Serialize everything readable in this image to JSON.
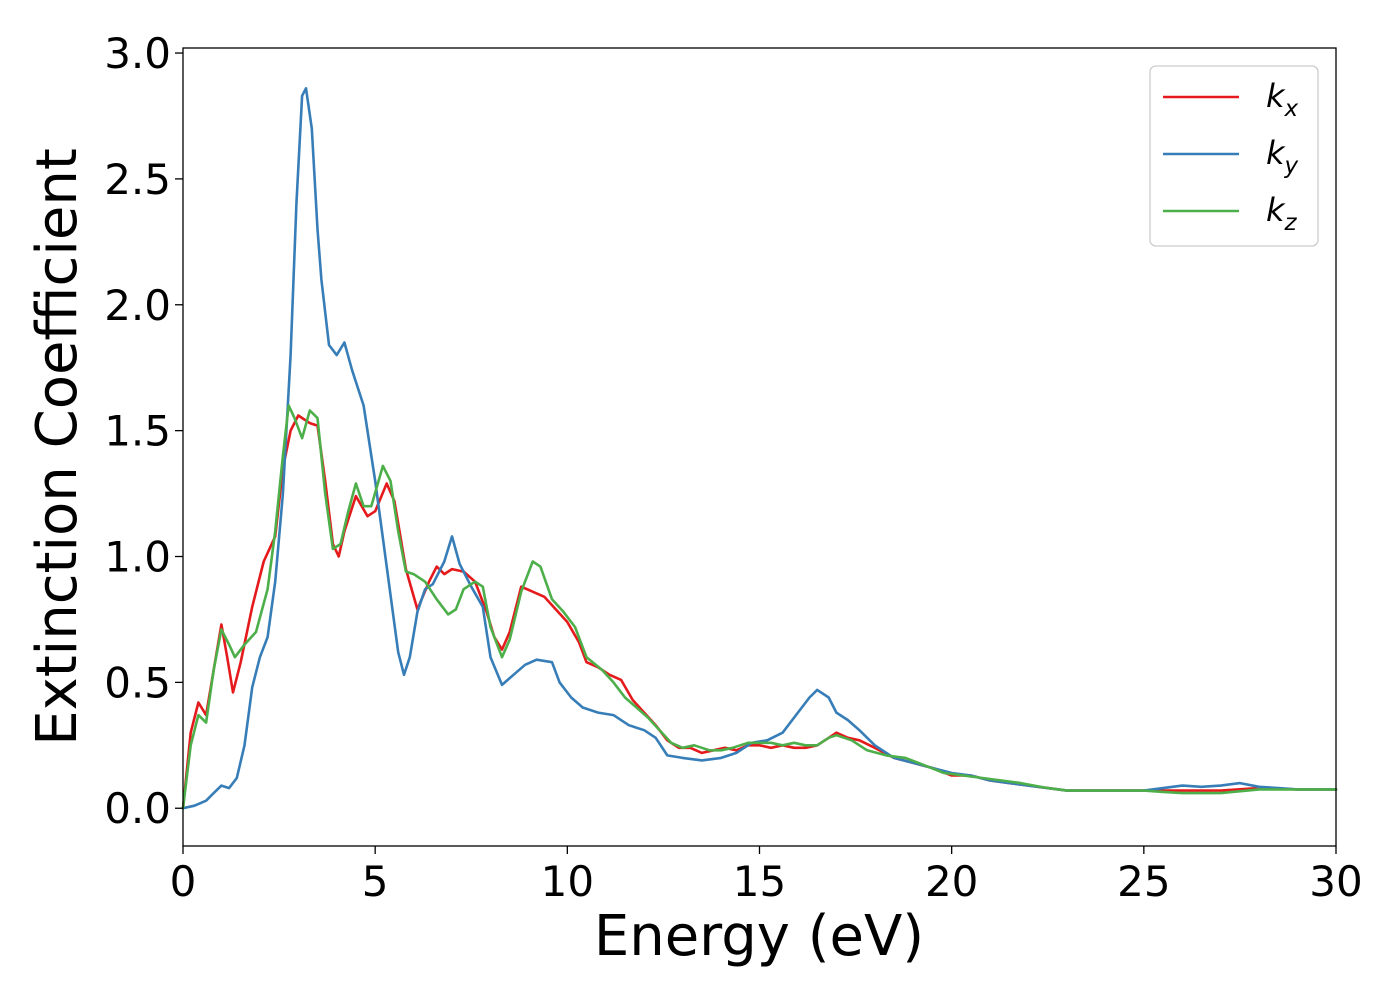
{
  "chart_data": {
    "type": "line",
    "title": "",
    "xlabel": "Energy (eV)",
    "ylabel": "Extinction Coefficient",
    "xlim": [
      0,
      30
    ],
    "ylim": [
      -0.15,
      3.02
    ],
    "xticks": [
      0,
      5,
      10,
      15,
      20,
      25,
      30
    ],
    "yticks": [
      0.0,
      0.5,
      1.0,
      1.5,
      2.0,
      2.5,
      3.0
    ],
    "xtick_labels": [
      "0",
      "5",
      "10",
      "15",
      "20",
      "25",
      "30"
    ],
    "ytick_labels": [
      "0.0",
      "0.5",
      "1.0",
      "1.5",
      "2.0",
      "2.5",
      "3.0"
    ],
    "grid": false,
    "legend_position": "top-right",
    "series": [
      {
        "name": "k",
        "subscript": "x",
        "color": "#e41a1c",
        "points": [
          [
            0,
            0
          ],
          [
            0.2,
            0.3
          ],
          [
            0.4,
            0.42
          ],
          [
            0.6,
            0.37
          ],
          [
            0.8,
            0.55
          ],
          [
            1.0,
            0.73
          ],
          [
            1.15,
            0.6
          ],
          [
            1.3,
            0.46
          ],
          [
            1.5,
            0.58
          ],
          [
            1.8,
            0.8
          ],
          [
            2.1,
            0.98
          ],
          [
            2.4,
            1.08
          ],
          [
            2.6,
            1.35
          ],
          [
            2.8,
            1.5
          ],
          [
            3.0,
            1.56
          ],
          [
            3.3,
            1.53
          ],
          [
            3.5,
            1.52
          ],
          [
            3.7,
            1.3
          ],
          [
            3.9,
            1.05
          ],
          [
            4.05,
            1.0
          ],
          [
            4.2,
            1.1
          ],
          [
            4.5,
            1.24
          ],
          [
            4.8,
            1.16
          ],
          [
            5.0,
            1.18
          ],
          [
            5.3,
            1.29
          ],
          [
            5.5,
            1.22
          ],
          [
            5.8,
            0.95
          ],
          [
            6.1,
            0.79
          ],
          [
            6.4,
            0.9
          ],
          [
            6.6,
            0.96
          ],
          [
            6.8,
            0.93
          ],
          [
            7.0,
            0.95
          ],
          [
            7.3,
            0.94
          ],
          [
            7.6,
            0.9
          ],
          [
            7.9,
            0.78
          ],
          [
            8.1,
            0.68
          ],
          [
            8.3,
            0.63
          ],
          [
            8.5,
            0.7
          ],
          [
            8.8,
            0.88
          ],
          [
            9.1,
            0.86
          ],
          [
            9.4,
            0.84
          ],
          [
            9.7,
            0.79
          ],
          [
            10.0,
            0.74
          ],
          [
            10.3,
            0.66
          ],
          [
            10.5,
            0.58
          ],
          [
            10.8,
            0.56
          ],
          [
            11.1,
            0.53
          ],
          [
            11.4,
            0.51
          ],
          [
            11.7,
            0.43
          ],
          [
            12.0,
            0.38
          ],
          [
            12.3,
            0.33
          ],
          [
            12.6,
            0.27
          ],
          [
            12.9,
            0.24
          ],
          [
            13.2,
            0.24
          ],
          [
            13.5,
            0.22
          ],
          [
            13.8,
            0.23
          ],
          [
            14.1,
            0.24
          ],
          [
            14.4,
            0.23
          ],
          [
            14.7,
            0.25
          ],
          [
            15.0,
            0.25
          ],
          [
            15.3,
            0.24
          ],
          [
            15.6,
            0.25
          ],
          [
            15.9,
            0.24
          ],
          [
            16.2,
            0.24
          ],
          [
            16.5,
            0.25
          ],
          [
            16.8,
            0.28
          ],
          [
            17.0,
            0.3
          ],
          [
            17.3,
            0.28
          ],
          [
            17.6,
            0.27
          ],
          [
            18.0,
            0.24
          ],
          [
            18.5,
            0.2
          ],
          [
            19.0,
            0.18
          ],
          [
            19.5,
            0.16
          ],
          [
            20.0,
            0.13
          ],
          [
            20.5,
            0.13
          ],
          [
            21.0,
            0.11
          ],
          [
            21.5,
            0.1
          ],
          [
            22.0,
            0.09
          ],
          [
            22.5,
            0.08
          ],
          [
            23.0,
            0.07
          ],
          [
            24.0,
            0.07
          ],
          [
            25.0,
            0.07
          ],
          [
            26.0,
            0.07
          ],
          [
            27.0,
            0.07
          ],
          [
            28.0,
            0.08
          ],
          [
            29.0,
            0.075
          ],
          [
            30.0,
            0.075
          ]
        ]
      },
      {
        "name": "k",
        "subscript": "y",
        "color": "#377eb8",
        "points": [
          [
            0,
            0
          ],
          [
            0.3,
            0.01
          ],
          [
            0.6,
            0.03
          ],
          [
            0.8,
            0.06
          ],
          [
            1.0,
            0.09
          ],
          [
            1.2,
            0.08
          ],
          [
            1.4,
            0.12
          ],
          [
            1.6,
            0.25
          ],
          [
            1.8,
            0.48
          ],
          [
            2.0,
            0.6
          ],
          [
            2.2,
            0.68
          ],
          [
            2.4,
            0.9
          ],
          [
            2.6,
            1.25
          ],
          [
            2.8,
            1.8
          ],
          [
            2.95,
            2.4
          ],
          [
            3.1,
            2.83
          ],
          [
            3.2,
            2.86
          ],
          [
            3.35,
            2.7
          ],
          [
            3.5,
            2.3
          ],
          [
            3.6,
            2.1
          ],
          [
            3.8,
            1.84
          ],
          [
            4.0,
            1.8
          ],
          [
            4.2,
            1.85
          ],
          [
            4.4,
            1.74
          ],
          [
            4.7,
            1.6
          ],
          [
            5.0,
            1.3
          ],
          [
            5.3,
            0.96
          ],
          [
            5.6,
            0.62
          ],
          [
            5.75,
            0.53
          ],
          [
            5.9,
            0.6
          ],
          [
            6.1,
            0.78
          ],
          [
            6.3,
            0.87
          ],
          [
            6.5,
            0.89
          ],
          [
            6.8,
            0.98
          ],
          [
            7.0,
            1.08
          ],
          [
            7.2,
            0.97
          ],
          [
            7.5,
            0.88
          ],
          [
            7.8,
            0.8
          ],
          [
            8.0,
            0.6
          ],
          [
            8.3,
            0.49
          ],
          [
            8.6,
            0.53
          ],
          [
            8.9,
            0.57
          ],
          [
            9.2,
            0.59
          ],
          [
            9.6,
            0.58
          ],
          [
            9.8,
            0.5
          ],
          [
            10.1,
            0.44
          ],
          [
            10.4,
            0.4
          ],
          [
            10.8,
            0.38
          ],
          [
            11.2,
            0.37
          ],
          [
            11.6,
            0.33
          ],
          [
            12.0,
            0.31
          ],
          [
            12.3,
            0.28
          ],
          [
            12.6,
            0.21
          ],
          [
            13.0,
            0.2
          ],
          [
            13.5,
            0.19
          ],
          [
            14.0,
            0.2
          ],
          [
            14.4,
            0.22
          ],
          [
            14.8,
            0.26
          ],
          [
            15.2,
            0.27
          ],
          [
            15.6,
            0.3
          ],
          [
            16.0,
            0.38
          ],
          [
            16.3,
            0.44
          ],
          [
            16.5,
            0.47
          ],
          [
            16.8,
            0.44
          ],
          [
            17.0,
            0.38
          ],
          [
            17.3,
            0.35
          ],
          [
            17.6,
            0.31
          ],
          [
            18.0,
            0.25
          ],
          [
            18.5,
            0.2
          ],
          [
            19.0,
            0.18
          ],
          [
            19.5,
            0.16
          ],
          [
            20.0,
            0.14
          ],
          [
            20.5,
            0.13
          ],
          [
            21.0,
            0.11
          ],
          [
            21.5,
            0.1
          ],
          [
            22.0,
            0.09
          ],
          [
            23.0,
            0.07
          ],
          [
            24.0,
            0.07
          ],
          [
            24.5,
            0.07
          ],
          [
            25.0,
            0.07
          ],
          [
            25.5,
            0.08
          ],
          [
            26.0,
            0.09
          ],
          [
            26.5,
            0.085
          ],
          [
            27.0,
            0.09
          ],
          [
            27.5,
            0.1
          ],
          [
            28.0,
            0.085
          ],
          [
            28.5,
            0.08
          ],
          [
            29.0,
            0.075
          ],
          [
            30.0,
            0.075
          ]
        ]
      },
      {
        "name": "k",
        "subscript": "z",
        "color": "#4daf4a",
        "points": [
          [
            0,
            0
          ],
          [
            0.2,
            0.25
          ],
          [
            0.4,
            0.37
          ],
          [
            0.6,
            0.34
          ],
          [
            0.8,
            0.55
          ],
          [
            1.0,
            0.71
          ],
          [
            1.2,
            0.65
          ],
          [
            1.35,
            0.6
          ],
          [
            1.6,
            0.65
          ],
          [
            1.9,
            0.7
          ],
          [
            2.2,
            0.87
          ],
          [
            2.4,
            1.1
          ],
          [
            2.6,
            1.4
          ],
          [
            2.75,
            1.6
          ],
          [
            2.9,
            1.55
          ],
          [
            3.1,
            1.47
          ],
          [
            3.3,
            1.58
          ],
          [
            3.5,
            1.55
          ],
          [
            3.7,
            1.25
          ],
          [
            3.9,
            1.03
          ],
          [
            4.1,
            1.05
          ],
          [
            4.3,
            1.18
          ],
          [
            4.5,
            1.29
          ],
          [
            4.7,
            1.2
          ],
          [
            4.9,
            1.2
          ],
          [
            5.2,
            1.36
          ],
          [
            5.4,
            1.3
          ],
          [
            5.6,
            1.1
          ],
          [
            5.8,
            0.94
          ],
          [
            6.0,
            0.93
          ],
          [
            6.3,
            0.9
          ],
          [
            6.6,
            0.83
          ],
          [
            6.9,
            0.77
          ],
          [
            7.1,
            0.79
          ],
          [
            7.3,
            0.87
          ],
          [
            7.6,
            0.9
          ],
          [
            7.8,
            0.88
          ],
          [
            8.0,
            0.72
          ],
          [
            8.3,
            0.6
          ],
          [
            8.5,
            0.67
          ],
          [
            8.8,
            0.86
          ],
          [
            9.1,
            0.98
          ],
          [
            9.3,
            0.96
          ],
          [
            9.6,
            0.83
          ],
          [
            9.9,
            0.78
          ],
          [
            10.2,
            0.72
          ],
          [
            10.5,
            0.6
          ],
          [
            10.9,
            0.55
          ],
          [
            11.2,
            0.5
          ],
          [
            11.5,
            0.44
          ],
          [
            11.8,
            0.4
          ],
          [
            12.1,
            0.36
          ],
          [
            12.4,
            0.31
          ],
          [
            12.7,
            0.26
          ],
          [
            13.0,
            0.24
          ],
          [
            13.3,
            0.25
          ],
          [
            13.7,
            0.23
          ],
          [
            14.0,
            0.23
          ],
          [
            14.3,
            0.24
          ],
          [
            14.7,
            0.26
          ],
          [
            15.0,
            0.26
          ],
          [
            15.3,
            0.26
          ],
          [
            15.6,
            0.25
          ],
          [
            15.9,
            0.26
          ],
          [
            16.2,
            0.25
          ],
          [
            16.5,
            0.25
          ],
          [
            16.8,
            0.28
          ],
          [
            17.0,
            0.29
          ],
          [
            17.4,
            0.27
          ],
          [
            17.8,
            0.23
          ],
          [
            18.3,
            0.21
          ],
          [
            18.8,
            0.2
          ],
          [
            19.3,
            0.17
          ],
          [
            19.8,
            0.14
          ],
          [
            20.3,
            0.13
          ],
          [
            20.8,
            0.12
          ],
          [
            21.3,
            0.11
          ],
          [
            21.8,
            0.1
          ],
          [
            22.5,
            0.08
          ],
          [
            23.0,
            0.07
          ],
          [
            24.0,
            0.07
          ],
          [
            25.0,
            0.07
          ],
          [
            25.5,
            0.065
          ],
          [
            26.0,
            0.06
          ],
          [
            26.5,
            0.06
          ],
          [
            27.0,
            0.06
          ],
          [
            28.0,
            0.075
          ],
          [
            29.0,
            0.075
          ],
          [
            30.0,
            0.075
          ]
        ]
      }
    ]
  }
}
